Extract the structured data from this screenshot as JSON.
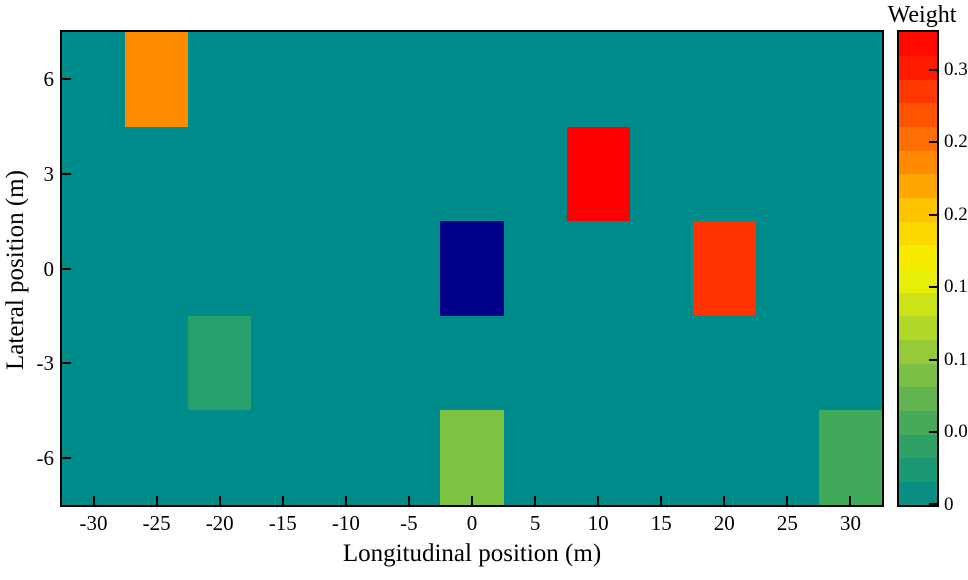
{
  "figure": {
    "xaxis_title": "Longitudinal position (m)",
    "yaxis_title": "Lateral position (m)",
    "colorbar_title": "Weight"
  },
  "chart_data": {
    "type": "heatmap",
    "title": "",
    "xlabel": "Longitudinal position (m)",
    "ylabel": "Lateral position (m)",
    "xlim": [
      -32.5,
      32.5
    ],
    "ylim": [
      -7.5,
      7.5
    ],
    "grid": false,
    "background_value": 0,
    "background_color": "#008B8B",
    "x_ticks": [
      {
        "v": -30,
        "label": "-30"
      },
      {
        "v": -25,
        "label": "-25"
      },
      {
        "v": -20,
        "label": "-20"
      },
      {
        "v": -15,
        "label": "-15"
      },
      {
        "v": -10,
        "label": "-10"
      },
      {
        "v": -5,
        "label": "-5"
      },
      {
        "v": 0,
        "label": "0"
      },
      {
        "v": 5,
        "label": "5"
      },
      {
        "v": 10,
        "label": "10"
      },
      {
        "v": 15,
        "label": "15"
      },
      {
        "v": 20,
        "label": "20"
      },
      {
        "v": 25,
        "label": "25"
      },
      {
        "v": 30,
        "label": "30"
      }
    ],
    "y_ticks": [
      {
        "v": 6,
        "label": "6"
      },
      {
        "v": 3,
        "label": "3"
      },
      {
        "v": 0,
        "label": "0"
      },
      {
        "v": -3,
        "label": "-3"
      },
      {
        "v": -6,
        "label": "-6"
      }
    ],
    "cells": [
      {
        "x_center": -25,
        "y_center": 6,
        "x_range": [
          -27.5,
          -22.5
        ],
        "y_range": [
          4.5,
          7.5
        ],
        "weight": 0.23,
        "color": "#FF8C00"
      },
      {
        "x_center": 10,
        "y_center": 3,
        "x_range": [
          7.5,
          12.5
        ],
        "y_range": [
          1.5,
          4.5
        ],
        "weight": 0.32,
        "color": "#FF0000"
      },
      {
        "x_center": 0,
        "y_center": 0,
        "x_range": [
          -2.5,
          2.5
        ],
        "y_range": [
          -1.5,
          1.5
        ],
        "weight": null,
        "color": "#00008B"
      },
      {
        "x_center": 20,
        "y_center": 0,
        "x_range": [
          17.5,
          22.5
        ],
        "y_range": [
          -1.5,
          1.5
        ],
        "weight": 0.29,
        "color": "#FF3300"
      },
      {
        "x_center": -20,
        "y_center": -3,
        "x_range": [
          -22.5,
          -17.5
        ],
        "y_range": [
          -4.5,
          -1.5
        ],
        "weight": 0.04,
        "color": "#27A06E"
      },
      {
        "x_center": 0,
        "y_center": -6,
        "x_range": [
          -2.5,
          2.5
        ],
        "y_range": [
          -7.5,
          -4.5
        ],
        "weight": 0.09,
        "color": "#7DC341"
      },
      {
        "x_center": 30,
        "y_center": -6,
        "x_range": [
          27.5,
          32.5
        ],
        "y_range": [
          -7.5,
          -4.5
        ],
        "weight": 0.055,
        "color": "#41AA5A"
      }
    ],
    "colorbar": {
      "title": "Weight",
      "range": [
        0,
        0.326
      ],
      "steps": 20,
      "ticks": [
        {
          "v": 0.3,
          "label": "0.3"
        },
        {
          "v": 0.25,
          "label": "0.25"
        },
        {
          "v": 0.2,
          "label": "0.2"
        },
        {
          "v": 0.15,
          "label": "0.15"
        },
        {
          "v": 0.1,
          "label": "0.1"
        },
        {
          "v": 0.05,
          "label": "0.05"
        },
        {
          "v": 0,
          "label": "0"
        }
      ],
      "stops": [
        {
          "v": 0.0,
          "color": "#008B8B"
        },
        {
          "v": 0.05,
          "color": "#3BA55F"
        },
        {
          "v": 0.1,
          "color": "#8CC63F"
        },
        {
          "v": 0.163,
          "color": "#F5F500"
        },
        {
          "v": 0.2,
          "color": "#FFC800"
        },
        {
          "v": 0.25,
          "color": "#FF7300"
        },
        {
          "v": 0.3,
          "color": "#FF1E00"
        },
        {
          "v": 0.326,
          "color": "#FF0000"
        }
      ]
    }
  }
}
